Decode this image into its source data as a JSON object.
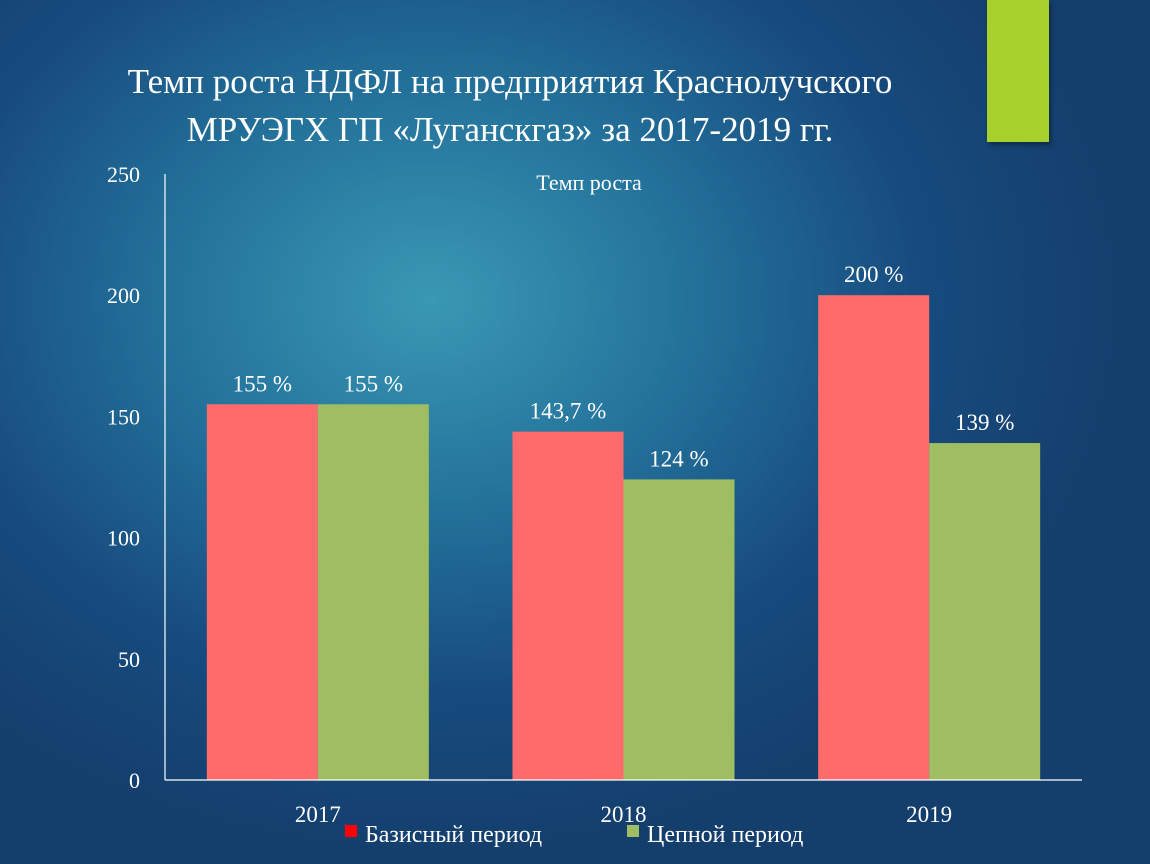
{
  "slide": {
    "title_line1": "Темп роста НДФЛ на предприятия Краснолучского",
    "title_line2": "МРУЭГХ ГП «Луганскгаз» за 2017-2019 гг.",
    "accent_color": "#a8d02c"
  },
  "chart_data": {
    "type": "bar",
    "title": "Темп роста",
    "categories": [
      "2017",
      "2018",
      "2019"
    ],
    "series": [
      {
        "name": "Базисный период",
        "values": [
          155,
          143.7,
          200
        ],
        "labels": [
          "155 %",
          "143,7 %",
          "200 %"
        ],
        "color": "#ff6b6b",
        "legend_color": "#ff0000"
      },
      {
        "name": "Цепной период",
        "values": [
          155,
          124,
          139
        ],
        "labels": [
          "155 %",
          "124 %",
          "139  %"
        ],
        "color": "#9fbe62",
        "legend_color": "#9fbe62"
      }
    ],
    "yticks": [
      "0",
      "50",
      "100",
      "150",
      "200",
      "250"
    ],
    "ylim": [
      0,
      250
    ],
    "grid": false,
    "legend_position": "bottom"
  }
}
